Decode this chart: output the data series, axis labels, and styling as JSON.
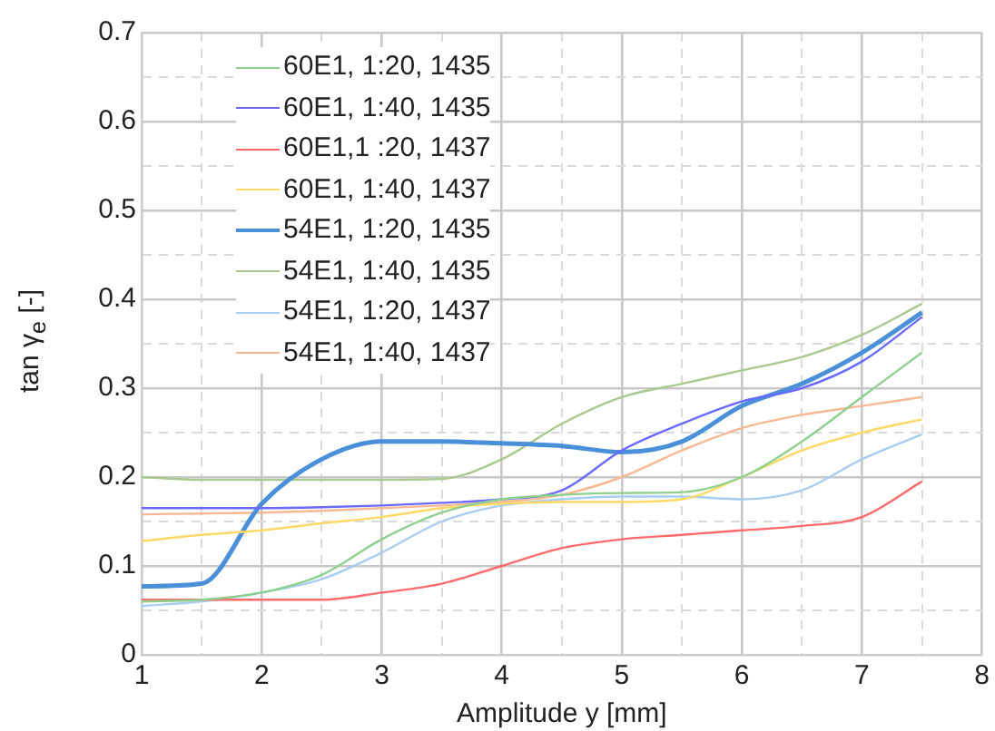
{
  "chart_data": {
    "type": "line",
    "xlabel": "Amplitude y [mm]",
    "ylabel": "tan γ$_{e}$ [-]",
    "x": [
      1,
      1.5,
      2,
      2.5,
      3,
      3.5,
      4,
      4.5,
      5,
      5.5,
      6,
      6.5,
      7,
      7.5
    ],
    "xlim": [
      1,
      8
    ],
    "xticks": [
      1,
      {
        "value": 1.5,
        "label": null
      },
      2,
      {
        "value": 2.5,
        "label": null
      },
      3,
      {
        "value": 3.5,
        "label": null
      },
      4,
      {
        "value": 4.5,
        "label": null
      },
      5,
      {
        "value": 5.5,
        "label": null
      },
      6,
      {
        "value": 6.5,
        "label": null
      },
      7,
      {
        "value": 7.5,
        "label": null
      },
      8
    ],
    "ylim": [
      0,
      0.7
    ],
    "yticks": [
      0,
      {
        "value": 0.05,
        "label": null
      },
      0.1,
      {
        "value": 0.15,
        "label": null
      },
      0.2,
      {
        "value": 0.25,
        "label": null
      },
      0.3,
      {
        "value": 0.35,
        "label": null
      },
      0.4,
      {
        "value": 0.45,
        "label": null
      },
      0.5,
      {
        "value": 0.55,
        "label": null
      },
      0.6,
      {
        "value": 0.65,
        "label": null
      },
      0.7
    ],
    "grid": true,
    "legend": "top left",
    "line_style": "solid",
    "series": [
      {
        "name": "60E1, 1:20, 1435",
        "color": "#8fd08f",
        "values": [
          0.06,
          0.062,
          0.07,
          0.09,
          0.13,
          0.16,
          0.175,
          0.18,
          0.182,
          0.183,
          0.2,
          0.24,
          0.29,
          0.34
        ]
      },
      {
        "name": "60E1, 1:40, 1435",
        "color": "#6a6aff",
        "values": [
          0.165,
          0.165,
          0.165,
          0.166,
          0.168,
          0.171,
          0.175,
          0.185,
          0.23,
          0.26,
          0.285,
          0.3,
          0.33,
          0.38
        ]
      },
      {
        "name": "60E1,1 :20, 1437",
        "color": "#ff6a6a",
        "values": [
          0.062,
          0.062,
          0.062,
          0.062,
          0.07,
          0.08,
          0.1,
          0.12,
          0.13,
          0.135,
          0.14,
          0.145,
          0.155,
          0.195
        ]
      },
      {
        "name": "60E1, 1:40, 1437",
        "color": "#ffd966",
        "values": [
          0.128,
          0.135,
          0.14,
          0.148,
          0.155,
          0.165,
          0.17,
          0.172,
          0.172,
          0.175,
          0.2,
          0.23,
          0.25,
          0.265
        ]
      },
      {
        "name": "54E1, 1:20, 1435",
        "color": "#4a90d9",
        "values": [
          0.077,
          0.08,
          0.17,
          0.22,
          0.24,
          0.24,
          0.238,
          0.235,
          0.228,
          0.24,
          0.28,
          0.305,
          0.34,
          0.385
        ]
      },
      {
        "name": "54E1, 1:40, 1435",
        "color": "#a9c98f",
        "values": [
          0.2,
          0.197,
          0.197,
          0.197,
          0.197,
          0.198,
          0.22,
          0.26,
          0.29,
          0.305,
          0.32,
          0.335,
          0.36,
          0.395
        ]
      },
      {
        "name": "54E1, 1:20, 1437",
        "color": "#a9cdf0",
        "values": [
          0.055,
          0.06,
          0.07,
          0.085,
          0.115,
          0.15,
          0.168,
          0.175,
          0.178,
          0.178,
          0.175,
          0.185,
          0.22,
          0.248
        ]
      },
      {
        "name": "54E1, 1:40, 1437",
        "color": "#f7b994",
        "values": [
          0.158,
          0.159,
          0.16,
          0.162,
          0.165,
          0.168,
          0.172,
          0.18,
          0.2,
          0.23,
          0.255,
          0.27,
          0.28,
          0.29
        ]
      }
    ]
  }
}
